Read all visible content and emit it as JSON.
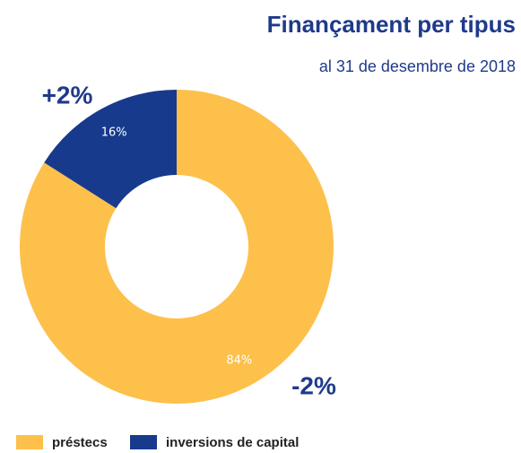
{
  "chart_data": {
    "type": "donut",
    "title": "Finançament per tipus",
    "subtitle": "al 31 de desembre de 2018",
    "categories": [
      "préstecs",
      "inversions de capital"
    ],
    "values": [
      84,
      16
    ],
    "value_labels": [
      "84%",
      "16%"
    ],
    "colors": [
      "#fdc04b",
      "#173a8c"
    ],
    "annotations": [
      "-2%",
      "+2%"
    ]
  }
}
